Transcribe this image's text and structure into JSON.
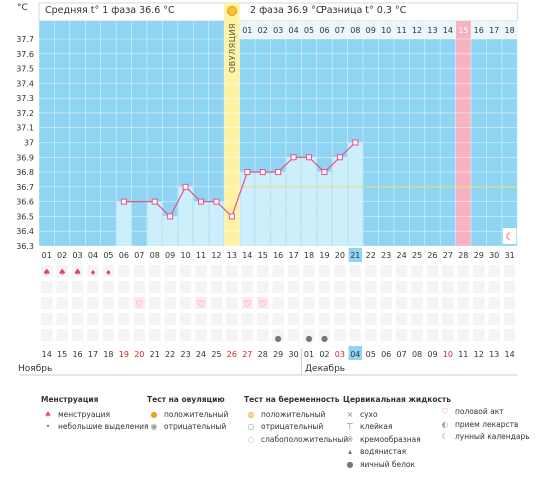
{
  "header": {
    "unit": "°C",
    "phase1": "Средняя t° 1 фаза 36.6 °C",
    "phase2": "2 фаза 36.9 °C",
    "diff": "Разница t° 0.3 °C",
    "ovulation_label": "ОВУЛЯЦИЯ"
  },
  "chart_data": {
    "type": "line",
    "y_ticks": [
      "37.7",
      "37.6",
      "37.5",
      "37.4",
      "37.3",
      "37.2",
      "37.1",
      "37",
      "36.9",
      "36.8",
      "36.7",
      "36.6",
      "36.5",
      "36.4",
      "36.3"
    ],
    "ylim": [
      36.3,
      37.7
    ],
    "cycle_days": [
      "01",
      "02",
      "03",
      "04",
      "05",
      "06",
      "07",
      "08",
      "09",
      "10",
      "11",
      "12",
      "13",
      "14",
      "15",
      "16",
      "17",
      "18",
      "19",
      "20",
      "21",
      "22",
      "23",
      "24",
      "25",
      "26",
      "27",
      "28",
      "29",
      "30",
      "31"
    ],
    "top_days": [
      "01",
      "02",
      "03",
      "04",
      "05",
      "06",
      "07",
      "08",
      "09",
      "10",
      "11",
      "12",
      "13",
      "14",
      "15",
      "16",
      "17",
      "18"
    ],
    "temperatures": [
      null,
      null,
      null,
      null,
      null,
      36.6,
      null,
      36.6,
      36.5,
      36.7,
      36.6,
      36.6,
      36.5,
      36.8,
      36.8,
      36.8,
      36.9,
      36.9,
      36.8,
      36.9,
      37.0,
      null,
      null,
      null,
      null,
      null,
      null,
      null,
      null,
      null,
      null
    ],
    "bars": [
      null,
      null,
      null,
      null,
      null,
      36.6,
      null,
      36.6,
      36.5,
      36.7,
      36.6,
      36.6,
      null,
      36.8,
      36.8,
      36.8,
      36.9,
      36.9,
      36.8,
      36.9,
      37.0,
      null,
      null,
      null,
      null,
      null,
      null,
      null,
      null,
      null,
      null
    ],
    "ovulation_day": 13,
    "highlight_day": 28,
    "coverline": 36.7
  },
  "calendar": {
    "dates": [
      "14",
      "15",
      "16",
      "17",
      "18",
      "19",
      "20",
      "21",
      "22",
      "23",
      "24",
      "25",
      "26",
      "27",
      "28",
      "29",
      "30",
      "01",
      "02",
      "03",
      "04",
      "05",
      "06",
      "07",
      "08",
      "09",
      "10",
      "11",
      "12",
      "13",
      "14"
    ],
    "red_dates": [
      6,
      7,
      13,
      14,
      20,
      27
    ],
    "highlight_date": 21,
    "month1": "Ноябрь",
    "month2": "Декабрь"
  },
  "legend": {
    "menstruation": {
      "title": "Менструация",
      "items": [
        "менструация",
        "небольшие выделения"
      ]
    },
    "ovulation_test": {
      "title": "Тест на овуляцию",
      "items": [
        "положительный",
        "отрицательный"
      ]
    },
    "pregnancy_test": {
      "title": "Тест на беременность",
      "items": [
        "положительный",
        "отрицательный",
        "слабоположительный"
      ]
    },
    "cervical": {
      "title": "Цервикальная жидкость",
      "items": [
        "сухо",
        "клейкая",
        "кремообразная",
        "водянистая",
        "яичный белок"
      ]
    },
    "other": {
      "items": [
        "половой акт",
        "прием лекарств",
        "лунный календарь"
      ]
    }
  },
  "colors": {
    "sky": "#8fd4f2",
    "bar": "#cdeefb",
    "ovulation": "#fff2a0",
    "highlight": "#f7b3c2",
    "line": "#e8508a"
  }
}
